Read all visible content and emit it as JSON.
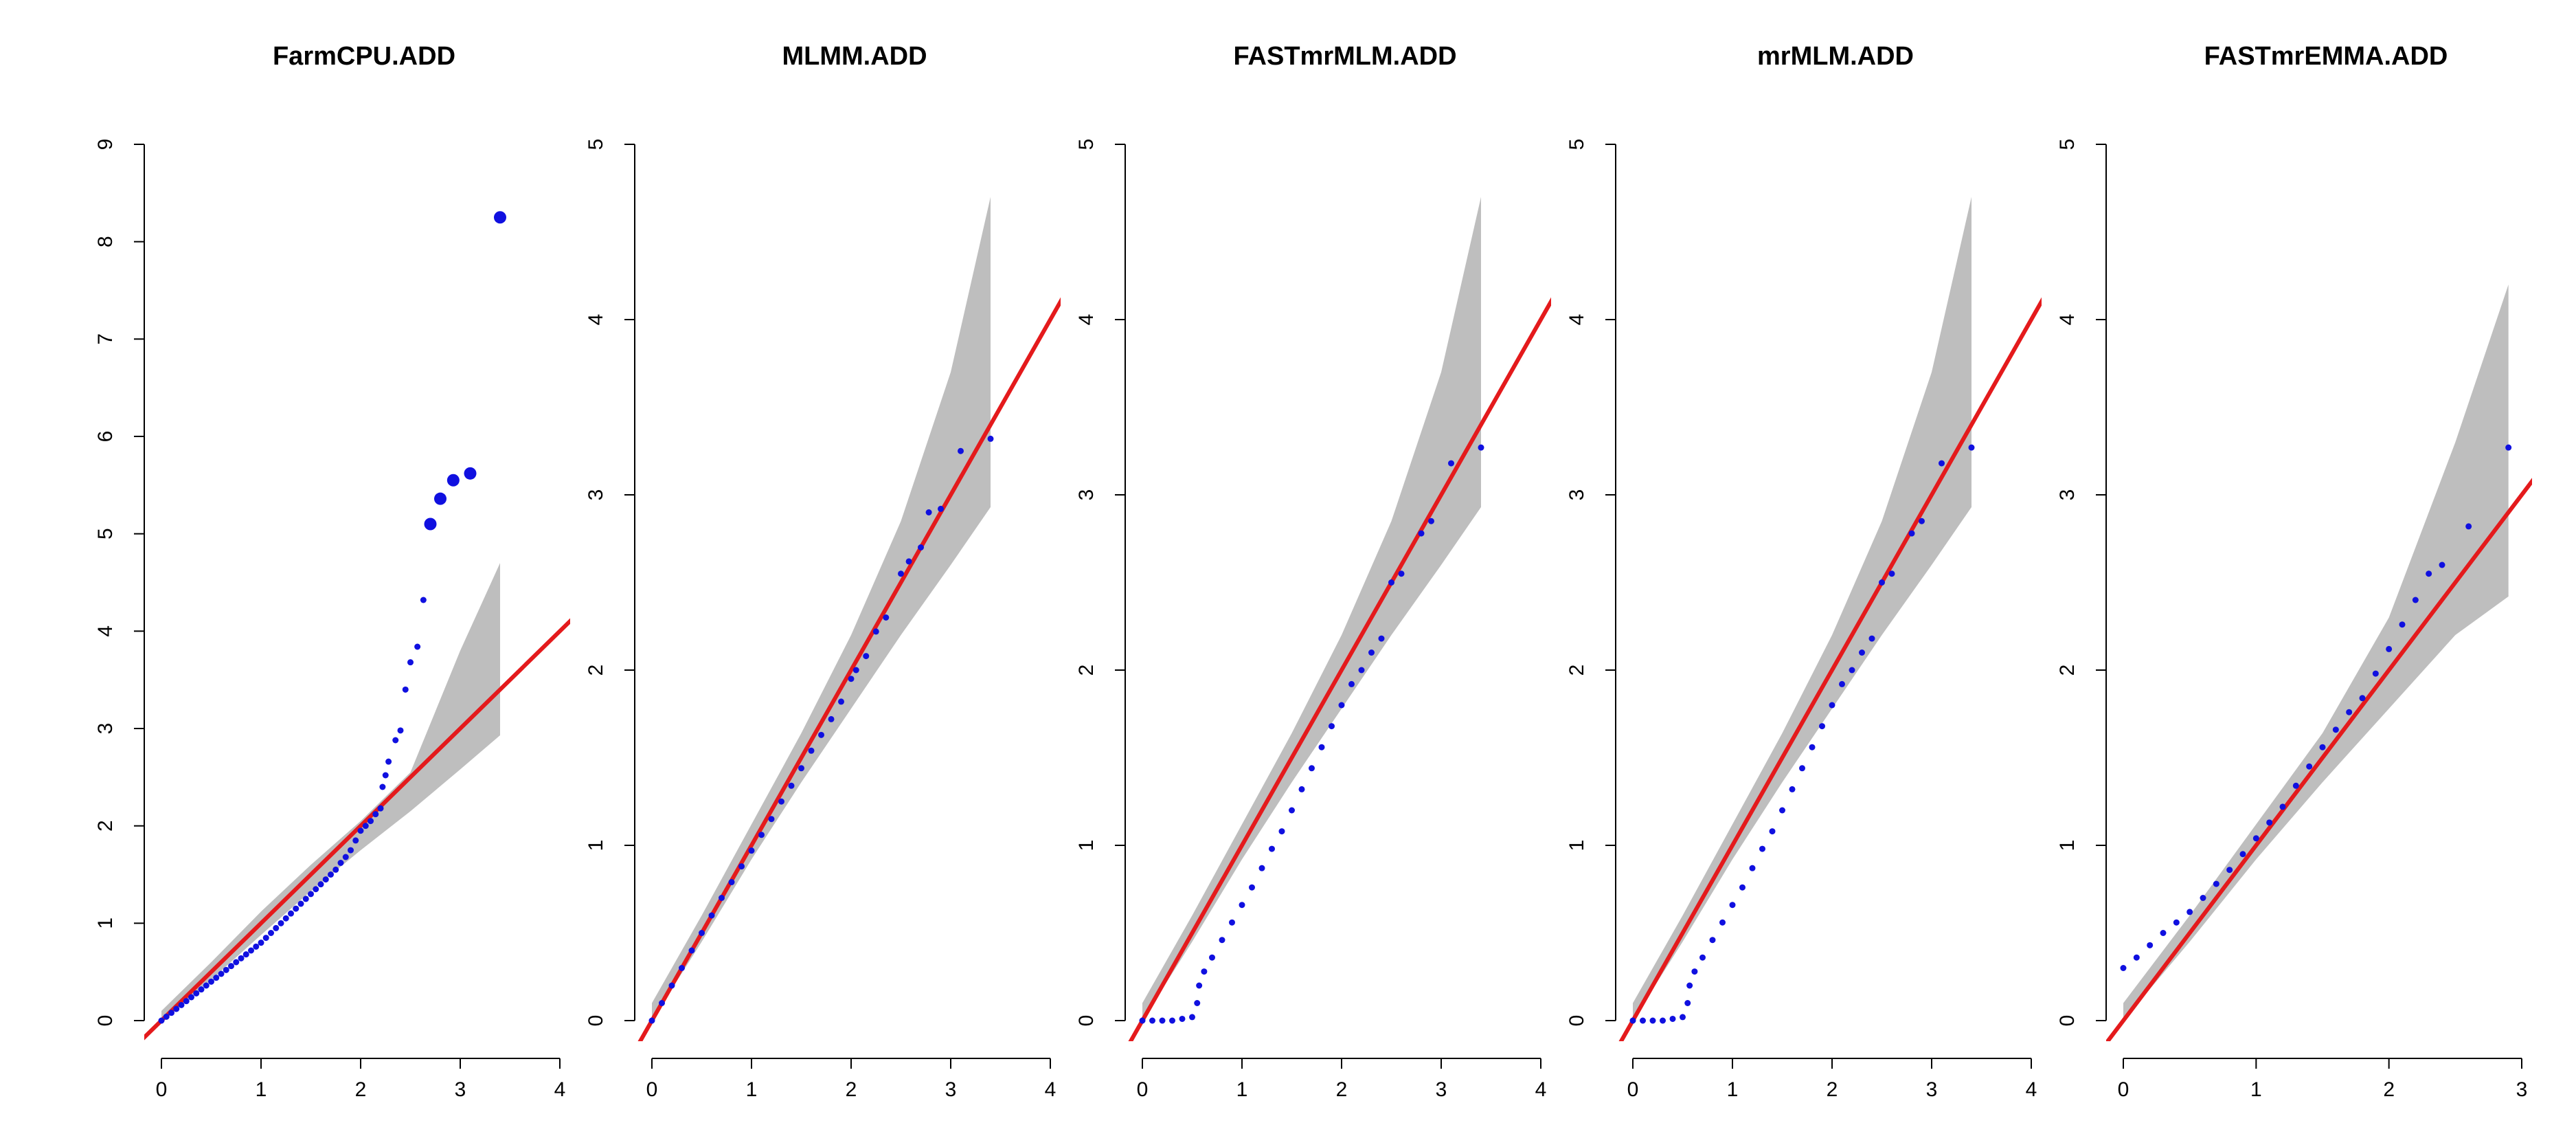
{
  "chart_data": [
    {
      "type": "scatter",
      "title": "FarmCPU.ADD",
      "xlim": [
        0,
        4
      ],
      "ylim": [
        0,
        9
      ],
      "xticks": [
        "0",
        "1",
        "2",
        "3",
        "4"
      ],
      "yticks": [
        "0",
        "1",
        "2",
        "3",
        "4",
        "5",
        "6",
        "7",
        "8",
        "9"
      ],
      "band": {
        "x": [
          0,
          0.5,
          1,
          1.5,
          2,
          2.5,
          3,
          3.4
        ],
        "lower": [
          0,
          0.42,
          0.88,
          1.33,
          1.75,
          2.15,
          2.58,
          2.93
        ],
        "upper": [
          0.1,
          0.6,
          1.12,
          1.6,
          2.05,
          2.55,
          3.8,
          4.7
        ]
      },
      "points": [
        {
          "x": 0.0,
          "y": 0.0,
          "s": 1
        },
        {
          "x": 0.05,
          "y": 0.04,
          "s": 1
        },
        {
          "x": 0.1,
          "y": 0.08,
          "s": 1
        },
        {
          "x": 0.15,
          "y": 0.12,
          "s": 1
        },
        {
          "x": 0.2,
          "y": 0.16,
          "s": 1
        },
        {
          "x": 0.25,
          "y": 0.2,
          "s": 1
        },
        {
          "x": 0.3,
          "y": 0.24,
          "s": 1
        },
        {
          "x": 0.35,
          "y": 0.28,
          "s": 1
        },
        {
          "x": 0.4,
          "y": 0.32,
          "s": 1
        },
        {
          "x": 0.45,
          "y": 0.36,
          "s": 1
        },
        {
          "x": 0.5,
          "y": 0.4,
          "s": 1
        },
        {
          "x": 0.55,
          "y": 0.44,
          "s": 1
        },
        {
          "x": 0.6,
          "y": 0.48,
          "s": 1
        },
        {
          "x": 0.65,
          "y": 0.52,
          "s": 1
        },
        {
          "x": 0.7,
          "y": 0.56,
          "s": 1
        },
        {
          "x": 0.75,
          "y": 0.6,
          "s": 1
        },
        {
          "x": 0.8,
          "y": 0.64,
          "s": 1
        },
        {
          "x": 0.85,
          "y": 0.68,
          "s": 1
        },
        {
          "x": 0.9,
          "y": 0.72,
          "s": 1
        },
        {
          "x": 0.95,
          "y": 0.76,
          "s": 1
        },
        {
          "x": 1.0,
          "y": 0.8,
          "s": 1
        },
        {
          "x": 1.05,
          "y": 0.85,
          "s": 1
        },
        {
          "x": 1.1,
          "y": 0.9,
          "s": 1
        },
        {
          "x": 1.15,
          "y": 0.95,
          "s": 1
        },
        {
          "x": 1.2,
          "y": 1.0,
          "s": 1
        },
        {
          "x": 1.25,
          "y": 1.05,
          "s": 1
        },
        {
          "x": 1.3,
          "y": 1.1,
          "s": 1
        },
        {
          "x": 1.35,
          "y": 1.15,
          "s": 1
        },
        {
          "x": 1.4,
          "y": 1.2,
          "s": 1
        },
        {
          "x": 1.45,
          "y": 1.25,
          "s": 1
        },
        {
          "x": 1.5,
          "y": 1.3,
          "s": 1
        },
        {
          "x": 1.55,
          "y": 1.35,
          "s": 1
        },
        {
          "x": 1.6,
          "y": 1.4,
          "s": 1
        },
        {
          "x": 1.65,
          "y": 1.45,
          "s": 1
        },
        {
          "x": 1.7,
          "y": 1.5,
          "s": 1
        },
        {
          "x": 1.75,
          "y": 1.55,
          "s": 1
        },
        {
          "x": 1.8,
          "y": 1.62,
          "s": 1
        },
        {
          "x": 1.85,
          "y": 1.68,
          "s": 1
        },
        {
          "x": 1.9,
          "y": 1.75,
          "s": 1
        },
        {
          "x": 1.95,
          "y": 1.85,
          "s": 1
        },
        {
          "x": 2.0,
          "y": 1.95,
          "s": 1
        },
        {
          "x": 2.05,
          "y": 2.0,
          "s": 1
        },
        {
          "x": 2.1,
          "y": 2.05,
          "s": 1
        },
        {
          "x": 2.15,
          "y": 2.12,
          "s": 1
        },
        {
          "x": 2.2,
          "y": 2.18,
          "s": 1
        },
        {
          "x": 2.22,
          "y": 2.4,
          "s": 1
        },
        {
          "x": 2.25,
          "y": 2.52,
          "s": 1
        },
        {
          "x": 2.28,
          "y": 2.66,
          "s": 1
        },
        {
          "x": 2.35,
          "y": 2.88,
          "s": 1
        },
        {
          "x": 2.4,
          "y": 2.98,
          "s": 1
        },
        {
          "x": 2.45,
          "y": 3.4,
          "s": 1
        },
        {
          "x": 2.5,
          "y": 3.68,
          "s": 1
        },
        {
          "x": 2.57,
          "y": 3.84,
          "s": 1
        },
        {
          "x": 2.63,
          "y": 4.32,
          "s": 1
        },
        {
          "x": 2.7,
          "y": 5.1,
          "s": 2
        },
        {
          "x": 2.8,
          "y": 5.36,
          "s": 2
        },
        {
          "x": 2.93,
          "y": 5.55,
          "s": 2
        },
        {
          "x": 3.1,
          "y": 5.62,
          "s": 2
        },
        {
          "x": 3.4,
          "y": 8.25,
          "s": 2
        }
      ]
    },
    {
      "type": "scatter",
      "title": "MLMM.ADD",
      "xlim": [
        0,
        4
      ],
      "ylim": [
        0,
        5
      ],
      "xticks": [
        "0",
        "1",
        "2",
        "3",
        "4"
      ],
      "yticks": [
        "0",
        "1",
        "2",
        "3",
        "4",
        "5"
      ],
      "band": {
        "x": [
          0,
          0.5,
          1,
          1.5,
          2,
          2.5,
          3,
          3.4
        ],
        "lower": [
          0,
          0.45,
          0.92,
          1.36,
          1.78,
          2.2,
          2.6,
          2.93
        ],
        "upper": [
          0.1,
          0.6,
          1.12,
          1.64,
          2.2,
          2.85,
          3.7,
          4.7
        ]
      },
      "points": [
        {
          "x": 0.0,
          "y": 0.0,
          "s": 1
        },
        {
          "x": 0.1,
          "y": 0.1,
          "s": 1
        },
        {
          "x": 0.2,
          "y": 0.2,
          "s": 1
        },
        {
          "x": 0.3,
          "y": 0.3,
          "s": 1
        },
        {
          "x": 0.4,
          "y": 0.4,
          "s": 1
        },
        {
          "x": 0.5,
          "y": 0.5,
          "s": 1
        },
        {
          "x": 0.6,
          "y": 0.6,
          "s": 1
        },
        {
          "x": 0.7,
          "y": 0.7,
          "s": 1
        },
        {
          "x": 0.8,
          "y": 0.79,
          "s": 1
        },
        {
          "x": 0.9,
          "y": 0.88,
          "s": 1
        },
        {
          "x": 1.0,
          "y": 0.97,
          "s": 1
        },
        {
          "x": 1.1,
          "y": 1.06,
          "s": 1
        },
        {
          "x": 1.2,
          "y": 1.15,
          "s": 1
        },
        {
          "x": 1.3,
          "y": 1.25,
          "s": 1
        },
        {
          "x": 1.4,
          "y": 1.34,
          "s": 1
        },
        {
          "x": 1.5,
          "y": 1.44,
          "s": 1
        },
        {
          "x": 1.6,
          "y": 1.54,
          "s": 1
        },
        {
          "x": 1.7,
          "y": 1.63,
          "s": 1
        },
        {
          "x": 1.8,
          "y": 1.72,
          "s": 1
        },
        {
          "x": 1.9,
          "y": 1.82,
          "s": 1
        },
        {
          "x": 2.0,
          "y": 1.95,
          "s": 1
        },
        {
          "x": 2.05,
          "y": 2.0,
          "s": 1
        },
        {
          "x": 2.15,
          "y": 2.08,
          "s": 1
        },
        {
          "x": 2.25,
          "y": 2.22,
          "s": 1
        },
        {
          "x": 2.35,
          "y": 2.3,
          "s": 1
        },
        {
          "x": 2.5,
          "y": 2.55,
          "s": 1
        },
        {
          "x": 2.58,
          "y": 2.62,
          "s": 1
        },
        {
          "x": 2.7,
          "y": 2.7,
          "s": 1
        },
        {
          "x": 2.78,
          "y": 2.9,
          "s": 1
        },
        {
          "x": 2.9,
          "y": 2.92,
          "s": 1
        },
        {
          "x": 3.1,
          "y": 3.25,
          "s": 1
        },
        {
          "x": 3.4,
          "y": 3.32,
          "s": 1
        }
      ]
    },
    {
      "type": "scatter",
      "title": "FASTmrMLM.ADD",
      "xlim": [
        0,
        4
      ],
      "ylim": [
        0,
        5
      ],
      "xticks": [
        "0",
        "1",
        "2",
        "3",
        "4"
      ],
      "yticks": [
        "0",
        "1",
        "2",
        "3",
        "4",
        "5"
      ],
      "band": {
        "x": [
          0,
          0.5,
          1,
          1.5,
          2,
          2.5,
          3,
          3.4
        ],
        "lower": [
          0,
          0.45,
          0.92,
          1.36,
          1.78,
          2.2,
          2.6,
          2.93
        ],
        "upper": [
          0.1,
          0.6,
          1.12,
          1.64,
          2.2,
          2.85,
          3.7,
          4.7
        ]
      },
      "points": [
        {
          "x": 0.0,
          "y": 0.0,
          "s": 1
        },
        {
          "x": 0.1,
          "y": 0.0,
          "s": 1
        },
        {
          "x": 0.2,
          "y": 0.0,
          "s": 1
        },
        {
          "x": 0.3,
          "y": 0.0,
          "s": 1
        },
        {
          "x": 0.4,
          "y": 0.01,
          "s": 1
        },
        {
          "x": 0.5,
          "y": 0.02,
          "s": 1
        },
        {
          "x": 0.55,
          "y": 0.1,
          "s": 1
        },
        {
          "x": 0.57,
          "y": 0.2,
          "s": 1
        },
        {
          "x": 0.62,
          "y": 0.28,
          "s": 1
        },
        {
          "x": 0.7,
          "y": 0.36,
          "s": 1
        },
        {
          "x": 0.8,
          "y": 0.46,
          "s": 1
        },
        {
          "x": 0.9,
          "y": 0.56,
          "s": 1
        },
        {
          "x": 1.0,
          "y": 0.66,
          "s": 1
        },
        {
          "x": 1.1,
          "y": 0.76,
          "s": 1
        },
        {
          "x": 1.2,
          "y": 0.87,
          "s": 1
        },
        {
          "x": 1.3,
          "y": 0.98,
          "s": 1
        },
        {
          "x": 1.4,
          "y": 1.08,
          "s": 1
        },
        {
          "x": 1.5,
          "y": 1.2,
          "s": 1
        },
        {
          "x": 1.6,
          "y": 1.32,
          "s": 1
        },
        {
          "x": 1.7,
          "y": 1.44,
          "s": 1
        },
        {
          "x": 1.8,
          "y": 1.56,
          "s": 1
        },
        {
          "x": 1.9,
          "y": 1.68,
          "s": 1
        },
        {
          "x": 2.0,
          "y": 1.8,
          "s": 1
        },
        {
          "x": 2.1,
          "y": 1.92,
          "s": 1
        },
        {
          "x": 2.2,
          "y": 2.0,
          "s": 1
        },
        {
          "x": 2.3,
          "y": 2.1,
          "s": 1
        },
        {
          "x": 2.4,
          "y": 2.18,
          "s": 1
        },
        {
          "x": 2.5,
          "y": 2.5,
          "s": 1
        },
        {
          "x": 2.6,
          "y": 2.55,
          "s": 1
        },
        {
          "x": 2.8,
          "y": 2.78,
          "s": 1
        },
        {
          "x": 2.9,
          "y": 2.85,
          "s": 1
        },
        {
          "x": 3.1,
          "y": 3.18,
          "s": 1
        },
        {
          "x": 3.4,
          "y": 3.27,
          "s": 1
        }
      ]
    },
    {
      "type": "scatter",
      "title": "mrMLM.ADD",
      "xlim": [
        0,
        4
      ],
      "ylim": [
        0,
        5
      ],
      "xticks": [
        "0",
        "1",
        "2",
        "3",
        "4"
      ],
      "yticks": [
        "0",
        "1",
        "2",
        "3",
        "4",
        "5"
      ],
      "band": {
        "x": [
          0,
          0.5,
          1,
          1.5,
          2,
          2.5,
          3,
          3.4
        ],
        "lower": [
          0,
          0.45,
          0.92,
          1.36,
          1.78,
          2.2,
          2.6,
          2.93
        ],
        "upper": [
          0.1,
          0.6,
          1.12,
          1.64,
          2.2,
          2.85,
          3.7,
          4.7
        ]
      },
      "points": [
        {
          "x": 0.0,
          "y": 0.0,
          "s": 1
        },
        {
          "x": 0.1,
          "y": 0.0,
          "s": 1
        },
        {
          "x": 0.2,
          "y": 0.0,
          "s": 1
        },
        {
          "x": 0.3,
          "y": 0.0,
          "s": 1
        },
        {
          "x": 0.4,
          "y": 0.01,
          "s": 1
        },
        {
          "x": 0.5,
          "y": 0.02,
          "s": 1
        },
        {
          "x": 0.55,
          "y": 0.1,
          "s": 1
        },
        {
          "x": 0.57,
          "y": 0.2,
          "s": 1
        },
        {
          "x": 0.62,
          "y": 0.28,
          "s": 1
        },
        {
          "x": 0.7,
          "y": 0.36,
          "s": 1
        },
        {
          "x": 0.8,
          "y": 0.46,
          "s": 1
        },
        {
          "x": 0.9,
          "y": 0.56,
          "s": 1
        },
        {
          "x": 1.0,
          "y": 0.66,
          "s": 1
        },
        {
          "x": 1.1,
          "y": 0.76,
          "s": 1
        },
        {
          "x": 1.2,
          "y": 0.87,
          "s": 1
        },
        {
          "x": 1.3,
          "y": 0.98,
          "s": 1
        },
        {
          "x": 1.4,
          "y": 1.08,
          "s": 1
        },
        {
          "x": 1.5,
          "y": 1.2,
          "s": 1
        },
        {
          "x": 1.6,
          "y": 1.32,
          "s": 1
        },
        {
          "x": 1.7,
          "y": 1.44,
          "s": 1
        },
        {
          "x": 1.8,
          "y": 1.56,
          "s": 1
        },
        {
          "x": 1.9,
          "y": 1.68,
          "s": 1
        },
        {
          "x": 2.0,
          "y": 1.8,
          "s": 1
        },
        {
          "x": 2.1,
          "y": 1.92,
          "s": 1
        },
        {
          "x": 2.2,
          "y": 2.0,
          "s": 1
        },
        {
          "x": 2.3,
          "y": 2.1,
          "s": 1
        },
        {
          "x": 2.4,
          "y": 2.18,
          "s": 1
        },
        {
          "x": 2.5,
          "y": 2.5,
          "s": 1
        },
        {
          "x": 2.6,
          "y": 2.55,
          "s": 1
        },
        {
          "x": 2.8,
          "y": 2.78,
          "s": 1
        },
        {
          "x": 2.9,
          "y": 2.85,
          "s": 1
        },
        {
          "x": 3.1,
          "y": 3.18,
          "s": 1
        },
        {
          "x": 3.4,
          "y": 3.27,
          "s": 1
        }
      ]
    },
    {
      "type": "scatter",
      "title": "FASTmrEMMA.ADD",
      "xlim": [
        0,
        3
      ],
      "ylim": [
        0,
        5
      ],
      "xticks": [
        "0",
        "1",
        "2",
        "3"
      ],
      "yticks": [
        "0",
        "1",
        "2",
        "3",
        "4",
        "5"
      ],
      "band": {
        "x": [
          0,
          0.5,
          1,
          1.5,
          2,
          2.5,
          2.9
        ],
        "lower": [
          0,
          0.45,
          0.92,
          1.36,
          1.78,
          2.2,
          2.42
        ],
        "upper": [
          0.1,
          0.6,
          1.12,
          1.64,
          2.3,
          3.3,
          4.2
        ]
      },
      "points": [
        {
          "x": 0.0,
          "y": 0.3,
          "s": 1
        },
        {
          "x": 0.1,
          "y": 0.36,
          "s": 1
        },
        {
          "x": 0.2,
          "y": 0.43,
          "s": 1
        },
        {
          "x": 0.3,
          "y": 0.5,
          "s": 1
        },
        {
          "x": 0.4,
          "y": 0.56,
          "s": 1
        },
        {
          "x": 0.5,
          "y": 0.62,
          "s": 1
        },
        {
          "x": 0.6,
          "y": 0.7,
          "s": 1
        },
        {
          "x": 0.7,
          "y": 0.78,
          "s": 1
        },
        {
          "x": 0.8,
          "y": 0.86,
          "s": 1
        },
        {
          "x": 0.9,
          "y": 0.95,
          "s": 1
        },
        {
          "x": 1.0,
          "y": 1.04,
          "s": 1
        },
        {
          "x": 1.1,
          "y": 1.13,
          "s": 1
        },
        {
          "x": 1.2,
          "y": 1.22,
          "s": 1
        },
        {
          "x": 1.3,
          "y": 1.34,
          "s": 1
        },
        {
          "x": 1.4,
          "y": 1.45,
          "s": 1
        },
        {
          "x": 1.5,
          "y": 1.56,
          "s": 1
        },
        {
          "x": 1.6,
          "y": 1.66,
          "s": 1
        },
        {
          "x": 1.7,
          "y": 1.76,
          "s": 1
        },
        {
          "x": 1.8,
          "y": 1.84,
          "s": 1
        },
        {
          "x": 1.9,
          "y": 1.98,
          "s": 1
        },
        {
          "x": 2.0,
          "y": 2.12,
          "s": 1
        },
        {
          "x": 2.1,
          "y": 2.26,
          "s": 1
        },
        {
          "x": 2.2,
          "y": 2.4,
          "s": 1
        },
        {
          "x": 2.3,
          "y": 2.55,
          "s": 1
        },
        {
          "x": 2.4,
          "y": 2.6,
          "s": 1
        },
        {
          "x": 2.6,
          "y": 2.82,
          "s": 1
        },
        {
          "x": 2.9,
          "y": 3.27,
          "s": 1
        }
      ]
    }
  ]
}
